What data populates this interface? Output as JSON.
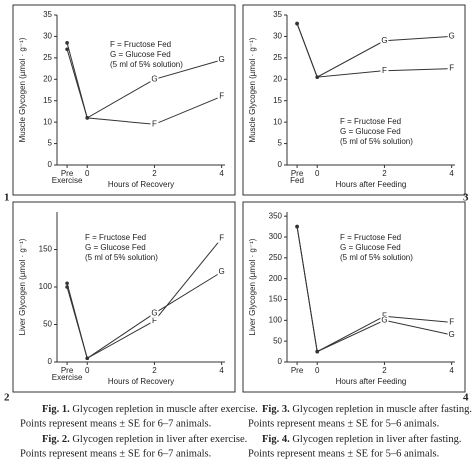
{
  "chart_data": [
    {
      "type": "line",
      "panel": "1",
      "y_label": "Muscle Glycogen (µmol · g⁻¹)",
      "x_label": "Hours of Recovery",
      "legend_text": [
        "F = Fructose Fed",
        "G = Glucose Fed",
        "(5 ml of 5% solution)"
      ],
      "x": [
        -0.6,
        0,
        2,
        4
      ],
      "xlim": [
        -0.9,
        4.1
      ],
      "xticks": [
        {
          "value": -0.6,
          "label": "Pre Exercise"
        },
        0,
        2,
        4
      ],
      "ylim": [
        0,
        35
      ],
      "yticks": [
        0,
        5,
        10,
        15,
        20,
        25,
        30,
        35
      ],
      "series": [
        {
          "name": "F",
          "color": "#333",
          "values": [
            27,
            11,
            9.5,
            16
          ]
        },
        {
          "name": "G",
          "color": "#333",
          "values": [
            28.5,
            11,
            20,
            24.5
          ]
        }
      ]
    },
    {
      "type": "line",
      "panel": "2",
      "y_label": "Liver Glycogen (µmol · g⁻¹)",
      "x_label": "Hours of Recovery",
      "legend_text": [
        "F = Fructose Fed",
        "G = Glucose Fed",
        "(5 ml of 5% solution)"
      ],
      "x": [
        -0.6,
        0,
        2,
        4
      ],
      "xlim": [
        -0.9,
        4.1
      ],
      "xticks": [
        {
          "value": -0.6,
          "label": "Pre Exercise"
        },
        0,
        2,
        4
      ],
      "ylim": [
        0,
        200
      ],
      "yticks": [
        0,
        50,
        100,
        150
      ],
      "series": [
        {
          "name": "F",
          "color": "#333",
          "values": [
            100,
            5,
            55,
            165
          ]
        },
        {
          "name": "G",
          "color": "#333",
          "values": [
            105,
            5,
            65,
            120
          ]
        }
      ]
    },
    {
      "type": "line",
      "panel": "3",
      "y_label": "Muscle Glycogen (µmol · g⁻¹)",
      "x_label": "Hours after Feeding",
      "legend_text": [
        "F = Fructose Fed",
        "G = Glucose Fed",
        "(5 ml of 5% solution)"
      ],
      "x": [
        -0.6,
        0,
        2,
        4
      ],
      "xlim": [
        -0.9,
        4.1
      ],
      "xticks": [
        {
          "value": -0.6,
          "label": "Pre Fed"
        },
        0,
        2,
        4
      ],
      "ylim": [
        0,
        35
      ],
      "yticks": [
        0,
        5,
        10,
        15,
        20,
        25,
        30,
        35
      ],
      "series": [
        {
          "name": "F",
          "color": "#333",
          "values": [
            33,
            20.5,
            22,
            22.5
          ]
        },
        {
          "name": "G",
          "color": "#333",
          "values": [
            33,
            20.5,
            29,
            30
          ]
        }
      ]
    },
    {
      "type": "line",
      "panel": "4",
      "y_label": "Liver Glycogen (µmol · g⁻¹)",
      "x_label": "Hours after Feeding",
      "legend_text": [
        "F = Fructose Fed",
        "G = Glucose Fed",
        "(5 ml of 5% solution)"
      ],
      "x": [
        -0.6,
        0,
        2,
        4
      ],
      "xlim": [
        -0.9,
        4.1
      ],
      "xticks": [
        {
          "value": -0.6,
          "label": "Pre"
        },
        0,
        2,
        4
      ],
      "ylim": [
        0,
        360
      ],
      "yticks": [
        0,
        50,
        100,
        150,
        200,
        250,
        300,
        350
      ],
      "series": [
        {
          "name": "F",
          "color": "#333",
          "values": [
            325,
            25,
            110,
            95
          ]
        },
        {
          "name": "G",
          "color": "#333",
          "values": [
            325,
            25,
            100,
            65
          ]
        }
      ]
    }
  ],
  "captions": [
    {
      "label": "Fig. 1.",
      "lines": [
        "Glycogen repletion in muscle after exercise.",
        "Points represent means ± SE for 6–7 animals."
      ]
    },
    {
      "label": "Fig. 2.",
      "lines": [
        "Glycogen repletion in liver after exercise.",
        "Points represent means ± SE for 6–7 animals."
      ]
    },
    {
      "label": "Fig. 3.",
      "lines": [
        "Glycogen repletion in muscle after fasting.",
        "Points represent means ± SE for 5–6 animals."
      ]
    },
    {
      "label": "Fig. 4.",
      "lines": [
        "Glycogen repletion in liver after fasting.",
        "Points represent means ± SE for 5–6 animals."
      ]
    }
  ]
}
